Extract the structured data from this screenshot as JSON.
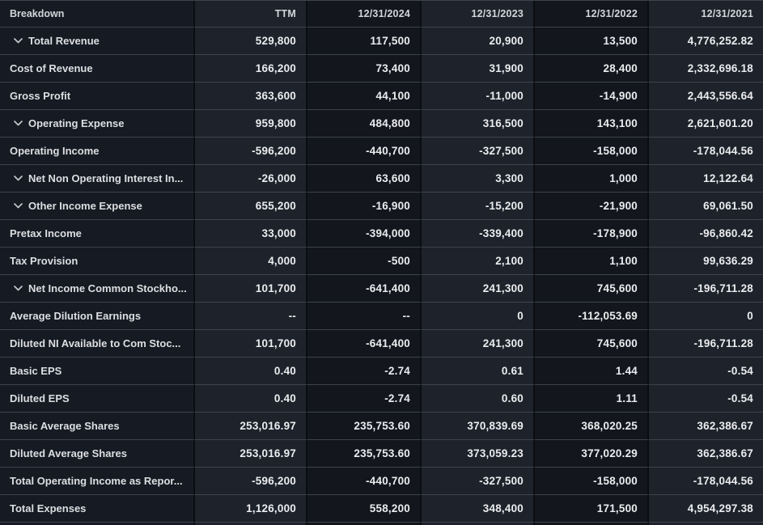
{
  "colors": {
    "page_background": "#0f1218",
    "column_dark": "#13161d",
    "column_light": "#1d222b",
    "breakdown_column": "#161a22",
    "row_border": "#3e434c",
    "column_gutter": "#0b0d12",
    "label_text": "#dcdee2",
    "value_text": "#ebecee",
    "header_text": "#d2d5da"
  },
  "table": {
    "columns": [
      {
        "label": "Breakdown"
      },
      {
        "label": "TTM"
      },
      {
        "label": "12/31/2024"
      },
      {
        "label": "12/31/2023"
      },
      {
        "label": "12/31/2022"
      },
      {
        "label": "12/31/2021"
      }
    ],
    "rows": [
      {
        "label": "Total Revenue",
        "expandable": true,
        "values": [
          "529,800",
          "117,500",
          "20,900",
          "13,500",
          "4,776,252.82"
        ]
      },
      {
        "label": "Cost of Revenue",
        "expandable": false,
        "values": [
          "166,200",
          "73,400",
          "31,900",
          "28,400",
          "2,332,696.18"
        ]
      },
      {
        "label": "Gross Profit",
        "expandable": false,
        "values": [
          "363,600",
          "44,100",
          "-11,000",
          "-14,900",
          "2,443,556.64"
        ]
      },
      {
        "label": "Operating Expense",
        "expandable": true,
        "values": [
          "959,800",
          "484,800",
          "316,500",
          "143,100",
          "2,621,601.20"
        ]
      },
      {
        "label": "Operating Income",
        "expandable": false,
        "values": [
          "-596,200",
          "-440,700",
          "-327,500",
          "-158,000",
          "-178,044.56"
        ]
      },
      {
        "label": "Net Non Operating Interest In...",
        "expandable": true,
        "values": [
          "-26,000",
          "63,600",
          "3,300",
          "1,000",
          "12,122.64"
        ]
      },
      {
        "label": "Other Income Expense",
        "expandable": true,
        "values": [
          "655,200",
          "-16,900",
          "-15,200",
          "-21,900",
          "69,061.50"
        ]
      },
      {
        "label": "Pretax Income",
        "expandable": false,
        "values": [
          "33,000",
          "-394,000",
          "-339,400",
          "-178,900",
          "-96,860.42"
        ]
      },
      {
        "label": "Tax Provision",
        "expandable": false,
        "values": [
          "4,000",
          "-500",
          "2,100",
          "1,100",
          "99,636.29"
        ]
      },
      {
        "label": "Net Income Common Stockho...",
        "expandable": true,
        "values": [
          "101,700",
          "-641,400",
          "241,300",
          "745,600",
          "-196,711.28"
        ]
      },
      {
        "label": "Average Dilution Earnings",
        "expandable": false,
        "values": [
          "--",
          "--",
          "0",
          "-112,053.69",
          "0"
        ]
      },
      {
        "label": "Diluted NI Available to Com Stoc...",
        "expandable": false,
        "values": [
          "101,700",
          "-641,400",
          "241,300",
          "745,600",
          "-196,711.28"
        ]
      },
      {
        "label": "Basic EPS",
        "expandable": false,
        "values": [
          "0.40",
          "-2.74",
          "0.61",
          "1.44",
          "-0.54"
        ]
      },
      {
        "label": "Diluted EPS",
        "expandable": false,
        "values": [
          "0.40",
          "-2.74",
          "0.60",
          "1.11",
          "-0.54"
        ]
      },
      {
        "label": "Basic Average Shares",
        "expandable": false,
        "values": [
          "253,016.97",
          "235,753.60",
          "370,839.69",
          "368,020.25",
          "362,386.67"
        ]
      },
      {
        "label": "Diluted Average Shares",
        "expandable": false,
        "values": [
          "253,016.97",
          "235,753.60",
          "373,059.23",
          "377,020.29",
          "362,386.67"
        ]
      },
      {
        "label": "Total Operating Income as Repor...",
        "expandable": false,
        "values": [
          "-596,200",
          "-440,700",
          "-327,500",
          "-158,000",
          "-178,044.56"
        ]
      },
      {
        "label": "Total Expenses",
        "expandable": false,
        "values": [
          "1,126,000",
          "558,200",
          "348,400",
          "171,500",
          "4,954,297.38"
        ]
      }
    ]
  }
}
